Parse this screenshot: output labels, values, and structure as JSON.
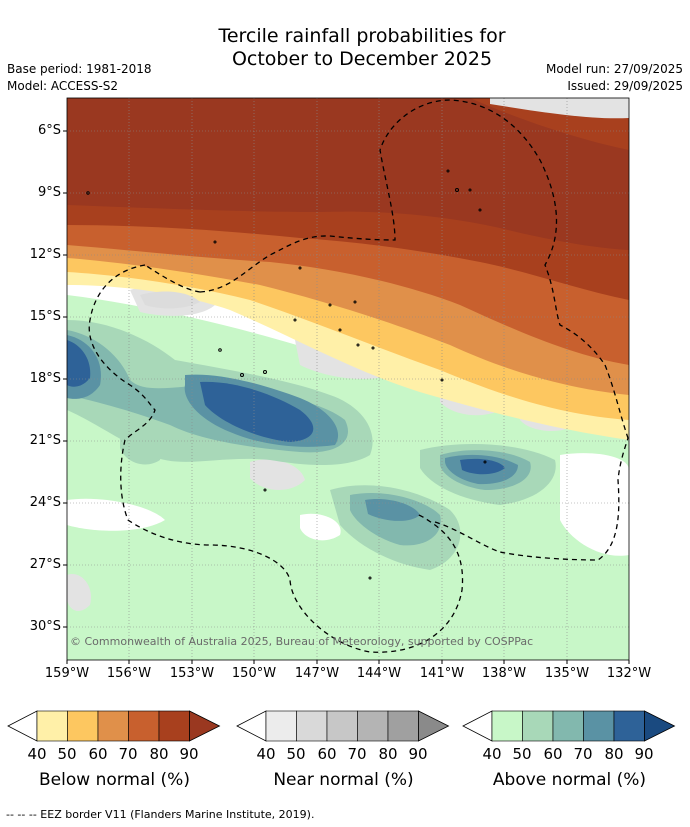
{
  "title": {
    "line1": "Tercile rainfall probabilities for",
    "line2": "October to December 2025"
  },
  "meta": {
    "base_period": "Base period: 1981-2018",
    "model": "Model: ACCESS-S2",
    "model_run": "Model run: 27/09/2025",
    "issued": "Issued: 29/09/2025"
  },
  "map": {
    "lat_labels": [
      "6°S",
      "9°S",
      "12°S",
      "15°S",
      "18°S",
      "21°S",
      "24°S",
      "27°S",
      "30°S"
    ],
    "lon_labels": [
      "159°W",
      "156°W",
      "153°W",
      "150°W",
      "147°W",
      "144°W",
      "141°W",
      "138°W",
      "135°W",
      "132°W"
    ],
    "copyright": "© Commonwealth of Australia 2025, Bureau of Meteorology, supported by COSPPac"
  },
  "colorbars": [
    {
      "label": "Below normal (%)",
      "ticks": [
        "40",
        "50",
        "60",
        "70",
        "80",
        "90"
      ],
      "colors": [
        "#fff0a8",
        "#fdc760",
        "#e0904a",
        "#c8602e",
        "#a8401e",
        "#9a3820"
      ]
    },
    {
      "label": "Near normal (%)",
      "ticks": [
        "40",
        "50",
        "60",
        "70",
        "80",
        "90"
      ],
      "colors": [
        "#ececec",
        "#d9d9d9",
        "#c7c7c7",
        "#b4b4b4",
        "#a0a0a0",
        "#8a8a8a"
      ]
    },
    {
      "label": "Above normal (%)",
      "ticks": [
        "40",
        "50",
        "60",
        "70",
        "80",
        "90"
      ],
      "colors": [
        "#c8f7c8",
        "#a8d8b8",
        "#82b8ae",
        "#5a92a4",
        "#2e6298",
        "#1a4a80"
      ]
    }
  ],
  "footnote": "--  --  -- EEZ border V11 (Flanders Marine Institute, 2019)."
}
